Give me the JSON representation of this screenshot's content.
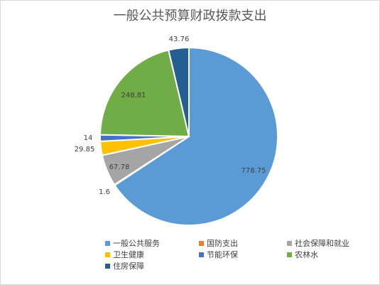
{
  "chart_data": {
    "type": "pie",
    "title": "一般公共预算财政拨款支出",
    "slices": [
      {
        "name": "一般公共服务",
        "value": 778.75,
        "label": "778.75",
        "color": "#5b9bd5"
      },
      {
        "name": "国防支出",
        "value": 1.6,
        "label": "1.6",
        "color": "#ed7d31"
      },
      {
        "name": "社会保障和就业",
        "value": 67.78,
        "label": "67.78",
        "color": "#a5a5a5"
      },
      {
        "name": "卫生健康",
        "value": 29.85,
        "label": "29.85",
        "color": "#ffc000"
      },
      {
        "name": "节能环保",
        "value": 14,
        "label": "14",
        "color": "#4472c4"
      },
      {
        "name": "农林水",
        "value": 248.81,
        "label": "248.81",
        "color": "#70ad47"
      },
      {
        "name": "住房保障",
        "value": 43.76,
        "label": "43.76",
        "color": "#255e91"
      }
    ],
    "legend_position": "bottom"
  }
}
